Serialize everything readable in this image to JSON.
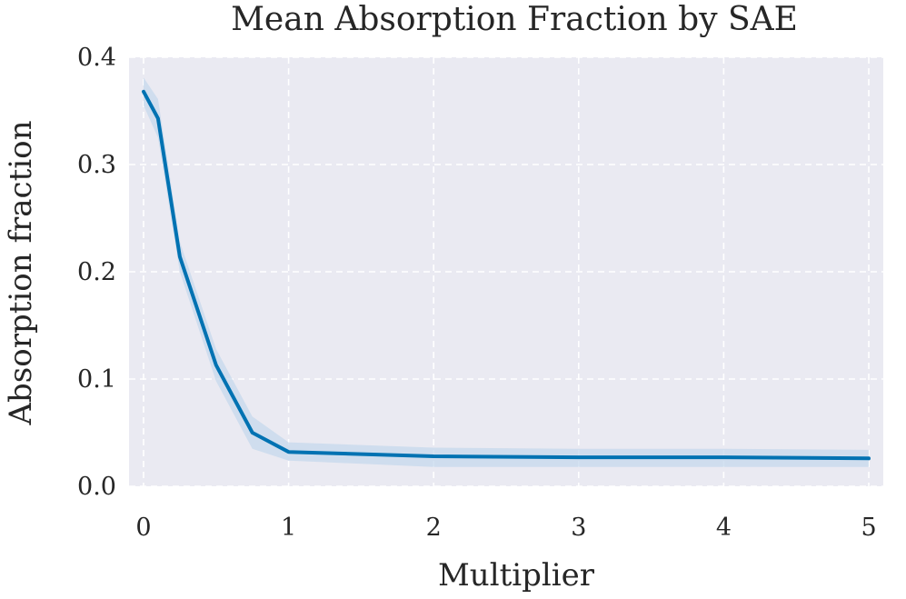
{
  "chart_data": {
    "type": "line",
    "title": "Mean Absorption Fraction by SAE",
    "xlabel": "Multiplier",
    "ylabel": "Absorption fraction",
    "xlim": [
      -0.1,
      5.1
    ],
    "ylim": [
      0.0,
      0.4
    ],
    "xticks": [
      0,
      1,
      2,
      3,
      4,
      5
    ],
    "yticks": [
      0.0,
      0.1,
      0.2,
      0.3,
      0.4
    ],
    "xtick_labels": [
      "0",
      "1",
      "2",
      "3",
      "4",
      "5"
    ],
    "ytick_labels": [
      "0.0",
      "0.1",
      "0.2",
      "0.3",
      "0.4"
    ],
    "grid": true,
    "series": [
      {
        "color": "#0072b2",
        "x": [
          0,
          0.1,
          0.25,
          0.5,
          0.75,
          1,
          2,
          3,
          4,
          5
        ],
        "y": [
          0.368,
          0.343,
          0.214,
          0.113,
          0.05,
          0.032,
          0.028,
          0.027,
          0.027,
          0.026
        ],
        "ci_lower": [
          0.355,
          0.325,
          0.2,
          0.098,
          0.035,
          0.024,
          0.018,
          0.018,
          0.018,
          0.018
        ],
        "ci_upper": [
          0.381,
          0.361,
          0.228,
          0.128,
          0.065,
          0.041,
          0.036,
          0.035,
          0.035,
          0.034
        ]
      }
    ],
    "colors": {
      "plot_background": "#eaeaf2",
      "band": "#c6d8ec",
      "grid": "#ffffff",
      "text": "#262626"
    }
  }
}
